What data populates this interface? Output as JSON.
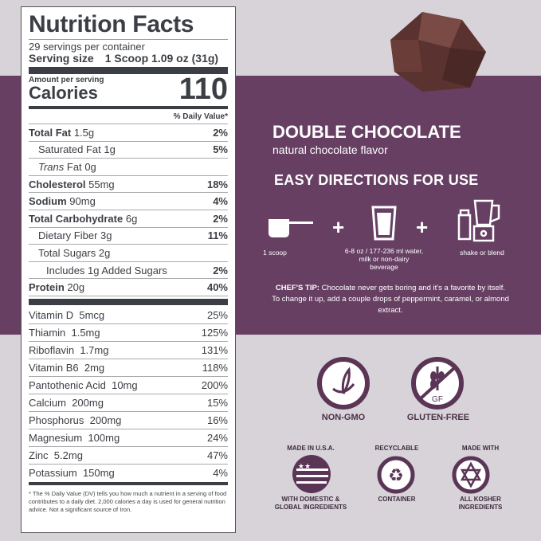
{
  "nutrition": {
    "title": "Nutrition Facts",
    "servings": "29 servings per container",
    "serving_size_label": "Serving size",
    "serving_size_value": "1 Scoop 1.09 oz (31g)",
    "amount_per_serving": "Amount per serving",
    "calories_label": "Calories",
    "calories_value": "110",
    "daily_value_header": "% Daily Value*",
    "rows": [
      {
        "name": "Total Fat",
        "amount": "1.5g",
        "dv": "2%"
      },
      {
        "name": "Saturated Fat",
        "amount": "1g",
        "dv": "5%"
      },
      {
        "name": "Trans",
        "name2": "Fat",
        "amount": "0g",
        "dv": ""
      },
      {
        "name": "Cholesterol",
        "amount": "55mg",
        "dv": "18%"
      },
      {
        "name": "Sodium",
        "amount": "90mg",
        "dv": "4%"
      },
      {
        "name": "Total Carbohydrate",
        "amount": "6g",
        "dv": "2%"
      },
      {
        "name": "Dietary Fiber",
        "amount": "3g",
        "dv": "11%"
      },
      {
        "name": "Total Sugars",
        "amount": "2g",
        "dv": ""
      },
      {
        "name": "Includes 1g Added Sugars",
        "amount": "",
        "dv": "2%"
      },
      {
        "name": "Protein",
        "amount": "20g",
        "dv": "40%"
      }
    ],
    "vitamins": [
      {
        "name": "Vitamin D",
        "amount": "5mcg",
        "dv": "25%"
      },
      {
        "name": "Thiamin",
        "amount": "1.5mg",
        "dv": "125%"
      },
      {
        "name": "Riboflavin",
        "amount": "1.7mg",
        "dv": "131%"
      },
      {
        "name": "Vitamin B6",
        "amount": "2mg",
        "dv": "118%"
      },
      {
        "name": "Pantothenic Acid",
        "amount": "10mg",
        "dv": "200%"
      },
      {
        "name": "Calcium",
        "amount": "200mg",
        "dv": "15%"
      },
      {
        "name": "Phosphorus",
        "amount": "200mg",
        "dv": "16%"
      },
      {
        "name": "Magnesium",
        "amount": "100mg",
        "dv": "24%"
      },
      {
        "name": "Zinc",
        "amount": "5.2mg",
        "dv": "47%"
      },
      {
        "name": "Potassium",
        "amount": "150mg",
        "dv": "4%"
      }
    ],
    "footnote": "* The % Daily Value (DV) tells you how much a nutrient in a serving of food contributes to a daily diet. 2,000 calories a day is used for general nutrition advice.  Not a significant source of Iron."
  },
  "product": {
    "flavor": "DOUBLE CHOCOLATE",
    "flavor_sub": "natural chocolate flavor"
  },
  "directions": {
    "title": "EASY DIRECTIONS FOR USE",
    "steps": [
      {
        "icon": "scoop-icon",
        "text": "1 scoop"
      },
      {
        "icon": "glass-icon",
        "text": "6-8 oz / 177-236 ml water,  milk or non-dairy beverage"
      },
      {
        "icon": "shaker-blender-icon",
        "text": "shake or blend"
      }
    ],
    "plus": "+",
    "tip_label": "CHEF'S TIP:",
    "tip_text": " Chocolate never gets boring and it's a favorite by itself. To change it up, add a couple drops of peppermint, caramel, or almond extract."
  },
  "badges": {
    "non_gmo": "NON-GMO",
    "gluten_free": "GLUTEN-FREE",
    "gf_mark": "GF",
    "usa_top": "MADE IN U.S.A.",
    "usa_bottom": "WITH DOMESTIC & GLOBAL INGREDIENTS",
    "recycle_top": "RECYCLABLE",
    "recycle_bottom": "CONTAINER",
    "kosher_top": "MADE WITH",
    "kosher_bottom": "ALL KOSHER INGREDIENTS"
  },
  "colors": {
    "purple": "#673f63",
    "background": "#d7d3d9",
    "label_text": "#3b3e44"
  }
}
